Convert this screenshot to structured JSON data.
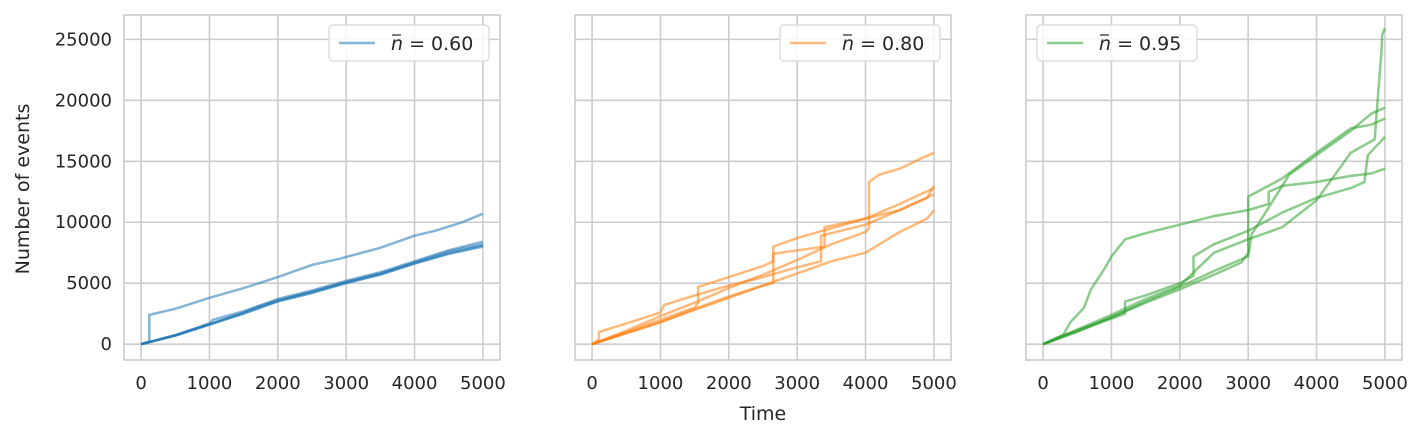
{
  "chart_data": [
    {
      "type": "line",
      "panel": "left",
      "title": "",
      "xlabel": "",
      "ylabel": "Number of events",
      "xlim": [
        -250,
        5250
      ],
      "ylim": [
        -1300,
        27000
      ],
      "x_ticks": [
        0,
        1000,
        2000,
        3000,
        4000,
        5000
      ],
      "y_ticks": [
        0,
        5000,
        10000,
        15000,
        20000,
        25000
      ],
      "grid": true,
      "legend": {
        "position": "top-right",
        "label_parts": [
          "n",
          " = 0.60"
        ]
      },
      "color": "#1f77b4",
      "series": [
        {
          "values": [
            [
              0,
              0
            ],
            [
              120,
              200
            ],
            [
              120,
              2400
            ],
            [
              500,
              2900
            ],
            [
              1000,
              3800
            ],
            [
              1500,
              4600
            ],
            [
              2000,
              5500
            ],
            [
              2500,
              6500
            ],
            [
              2900,
              7000
            ],
            [
              3500,
              7900
            ],
            [
              4000,
              8900
            ],
            [
              4300,
              9300
            ],
            [
              4700,
              10000
            ],
            [
              5000,
              10700
            ]
          ]
        },
        {
          "values": [
            [
              0,
              0
            ],
            [
              500,
              700
            ],
            [
              1000,
              1600
            ],
            [
              1500,
              2500
            ],
            [
              2000,
              3500
            ],
            [
              2500,
              4200
            ],
            [
              3000,
              5000
            ],
            [
              3500,
              5700
            ],
            [
              4000,
              6600
            ],
            [
              4500,
              7400
            ],
            [
              5000,
              8000
            ]
          ]
        },
        {
          "values": [
            [
              0,
              0
            ],
            [
              500,
              750
            ],
            [
              1000,
              1700
            ],
            [
              1050,
              2000
            ],
            [
              1500,
              2700
            ],
            [
              2000,
              3600
            ],
            [
              2500,
              4300
            ],
            [
              3000,
              5100
            ],
            [
              3500,
              5800
            ],
            [
              4000,
              6700
            ],
            [
              4500,
              7600
            ],
            [
              5000,
              8200
            ]
          ]
        },
        {
          "values": [
            [
              0,
              0
            ],
            [
              500,
              720
            ],
            [
              1000,
              1650
            ],
            [
              1500,
              2600
            ],
            [
              1700,
              3100
            ],
            [
              2000,
              3700
            ],
            [
              2500,
              4400
            ],
            [
              3000,
              5200
            ],
            [
              3500,
              5900
            ],
            [
              4000,
              6800
            ],
            [
              4500,
              7700
            ],
            [
              5000,
              8400
            ]
          ]
        },
        {
          "values": [
            [
              0,
              0
            ],
            [
              500,
              700
            ],
            [
              1000,
              1600
            ],
            [
              1500,
              2550
            ],
            [
              2000,
              3550
            ],
            [
              2500,
              4250
            ],
            [
              3000,
              5050
            ],
            [
              3500,
              5750
            ],
            [
              4000,
              6650
            ],
            [
              4500,
              7450
            ],
            [
              5000,
              8100
            ]
          ]
        }
      ]
    },
    {
      "type": "line",
      "panel": "middle",
      "title": "",
      "xlabel": "Time",
      "ylabel": "",
      "xlim": [
        -250,
        5250
      ],
      "ylim": [
        -1300,
        27000
      ],
      "x_ticks": [
        0,
        1000,
        2000,
        3000,
        4000,
        5000
      ],
      "y_ticks": [
        0,
        5000,
        10000,
        15000,
        20000,
        25000
      ],
      "grid": true,
      "legend": {
        "position": "top-right",
        "label_parts": [
          "n",
          " = 0.80"
        ]
      },
      "color": "#ff7f0e",
      "series": [
        {
          "values": [
            [
              0,
              0
            ],
            [
              500,
              1100
            ],
            [
              1000,
              2300
            ],
            [
              1500,
              3400
            ],
            [
              2000,
              4600
            ],
            [
              2500,
              5700
            ],
            [
              3000,
              6900
            ],
            [
              3500,
              8200
            ],
            [
              4000,
              9200
            ],
            [
              4050,
              9500
            ],
            [
              4050,
              13300
            ],
            [
              4200,
              13900
            ],
            [
              4500,
              14400
            ],
            [
              4800,
              15200
            ],
            [
              5000,
              15700
            ]
          ]
        },
        {
          "values": [
            [
              0,
              0
            ],
            [
              500,
              1000
            ],
            [
              1000,
              2000
            ],
            [
              1500,
              3000
            ],
            [
              1550,
              3400
            ],
            [
              1550,
              4700
            ],
            [
              2000,
              5500
            ],
            [
              2500,
              6400
            ],
            [
              2650,
              6800
            ],
            [
              2650,
              8000
            ],
            [
              3000,
              8700
            ],
            [
              3500,
              9500
            ],
            [
              4000,
              10300
            ],
            [
              4500,
              11000
            ],
            [
              5000,
              12300
            ]
          ]
        },
        {
          "values": [
            [
              0,
              0
            ],
            [
              100,
              400
            ],
            [
              100,
              1000
            ],
            [
              500,
              1700
            ],
            [
              1000,
              2600
            ],
            [
              1050,
              3200
            ],
            [
              1500,
              4000
            ],
            [
              2000,
              4800
            ],
            [
              2500,
              5500
            ],
            [
              3000,
              6300
            ],
            [
              3350,
              6800
            ],
            [
              3350,
              8900
            ],
            [
              4000,
              9800
            ],
            [
              4500,
              11000
            ],
            [
              4900,
              12000
            ],
            [
              5000,
              13000
            ]
          ]
        },
        {
          "values": [
            [
              0,
              0
            ],
            [
              500,
              900
            ],
            [
              1000,
              1800
            ],
            [
              1500,
              2800
            ],
            [
              2000,
              3800
            ],
            [
              2500,
              4800
            ],
            [
              2650,
              5000
            ],
            [
              2650,
              7400
            ],
            [
              3000,
              7700
            ],
            [
              3400,
              8000
            ],
            [
              3400,
              9600
            ],
            [
              4000,
              10300
            ],
            [
              4500,
              11500
            ],
            [
              5000,
              12800
            ]
          ]
        },
        {
          "values": [
            [
              0,
              0
            ],
            [
              500,
              900
            ],
            [
              1000,
              1800
            ],
            [
              1500,
              2900
            ],
            [
              2000,
              3900
            ],
            [
              2500,
              4800
            ],
            [
              3000,
              5800
            ],
            [
              3500,
              6800
            ],
            [
              4000,
              7500
            ],
            [
              4500,
              9200
            ],
            [
              4900,
              10300
            ],
            [
              5000,
              11000
            ]
          ]
        }
      ]
    },
    {
      "type": "line",
      "panel": "right",
      "title": "",
      "xlabel": "",
      "ylabel": "",
      "xlim": [
        -250,
        5250
      ],
      "ylim": [
        -1300,
        27000
      ],
      "x_ticks": [
        0,
        1000,
        2000,
        3000,
        4000,
        5000
      ],
      "y_ticks": [
        0,
        5000,
        10000,
        15000,
        20000,
        25000
      ],
      "grid": true,
      "legend": {
        "position": "top-left",
        "label_parts": [
          "n",
          " = 0.95"
        ]
      },
      "color": "#2ca02c",
      "series": [
        {
          "values": [
            [
              0,
              0
            ],
            [
              300,
              800
            ],
            [
              400,
              1800
            ],
            [
              600,
              3000
            ],
            [
              700,
              4500
            ],
            [
              900,
              6200
            ],
            [
              1000,
              7200
            ],
            [
              1200,
              8600
            ],
            [
              1500,
              9100
            ],
            [
              2000,
              9800
            ],
            [
              2500,
              10500
            ],
            [
              3000,
              11000
            ],
            [
              3300,
              11500
            ],
            [
              3300,
              12500
            ],
            [
              3500,
              13000
            ],
            [
              4000,
              13300
            ],
            [
              4500,
              13800
            ],
            [
              4800,
              14000
            ],
            [
              5000,
              14400
            ]
          ]
        },
        {
          "values": [
            [
              0,
              0
            ],
            [
              400,
              900
            ],
            [
              1000,
              2100
            ],
            [
              1200,
              2500
            ],
            [
              1200,
              3500
            ],
            [
              1500,
              4000
            ],
            [
              2000,
              5000
            ],
            [
              2200,
              5600
            ],
            [
              2200,
              7200
            ],
            [
              2500,
              8200
            ],
            [
              3000,
              9300
            ],
            [
              3500,
              10800
            ],
            [
              4000,
              12000
            ],
            [
              4500,
              12800
            ],
            [
              4700,
              13300
            ],
            [
              4750,
              15500
            ],
            [
              4900,
              16400
            ],
            [
              5000,
              17000
            ]
          ]
        },
        {
          "values": [
            [
              0,
              0
            ],
            [
              500,
              1100
            ],
            [
              1000,
              2200
            ],
            [
              1500,
              3400
            ],
            [
              2000,
              4500
            ],
            [
              2500,
              5700
            ],
            [
              2900,
              6700
            ],
            [
              3000,
              7500
            ],
            [
              3000,
              12100
            ],
            [
              3500,
              13600
            ],
            [
              4000,
              15700
            ],
            [
              4500,
              17700
            ],
            [
              4800,
              18000
            ],
            [
              5000,
              18500
            ]
          ]
        },
        {
          "values": [
            [
              0,
              0
            ],
            [
              500,
              1200
            ],
            [
              1000,
              2400
            ],
            [
              1500,
              3700
            ],
            [
              2000,
              4800
            ],
            [
              2500,
              7500
            ],
            [
              3000,
              8600
            ],
            [
              3500,
              9600
            ],
            [
              4000,
              11800
            ],
            [
              4500,
              15700
            ],
            [
              4850,
              16800
            ],
            [
              4900,
              20500
            ],
            [
              4950,
              24000
            ],
            [
              4960,
              25400
            ],
            [
              5000,
              25900
            ]
          ]
        },
        {
          "values": [
            [
              0,
              0
            ],
            [
              500,
              1000
            ],
            [
              1000,
              2200
            ],
            [
              1500,
              3500
            ],
            [
              2000,
              4700
            ],
            [
              2500,
              6000
            ],
            [
              3000,
              7200
            ],
            [
              3050,
              9000
            ],
            [
              3500,
              13000
            ],
            [
              3600,
              13900
            ],
            [
              4000,
              15500
            ],
            [
              4500,
              17500
            ],
            [
              4800,
              18900
            ],
            [
              5000,
              19400
            ]
          ]
        }
      ]
    }
  ]
}
